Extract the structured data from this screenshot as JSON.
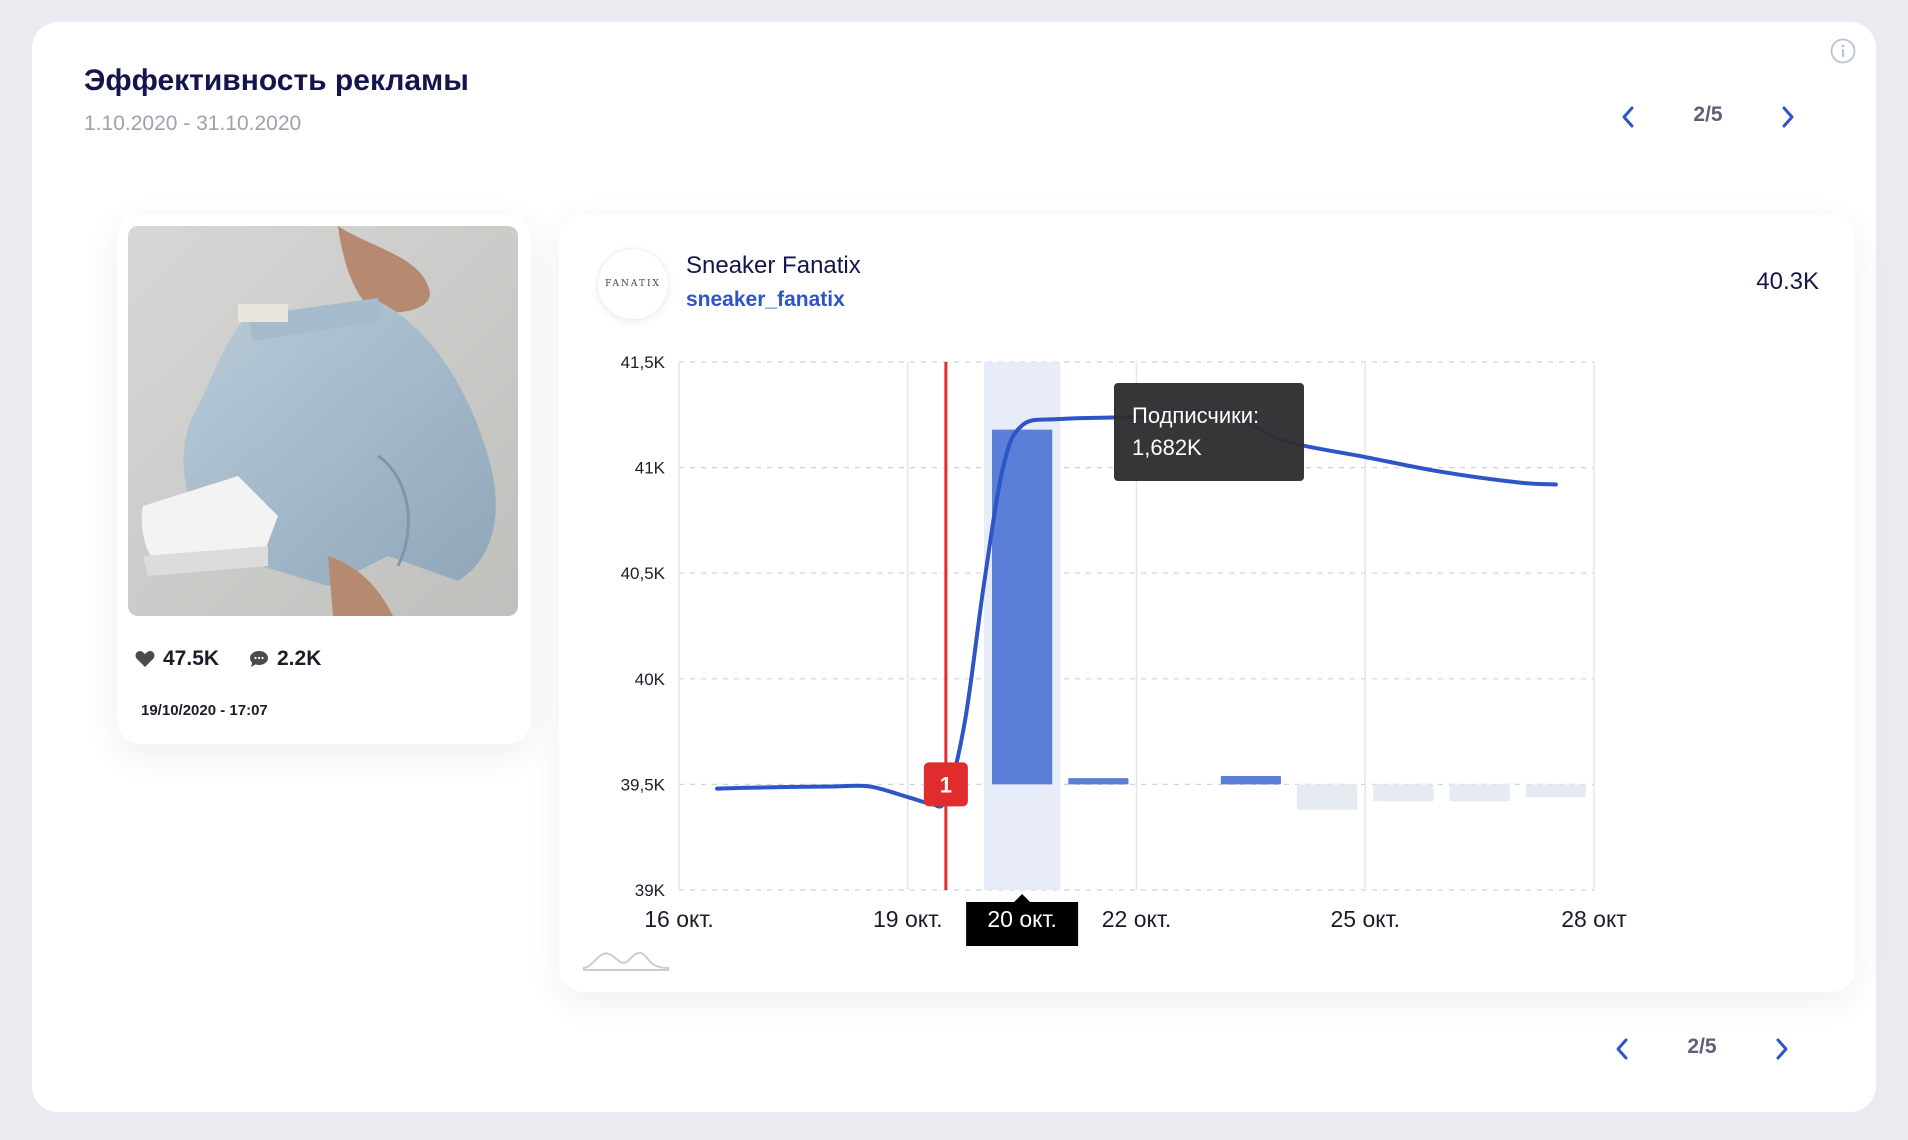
{
  "header": {
    "title": "Эффективность рекламы",
    "date_range": "1.10.2020 - 31.10.2020"
  },
  "pager_top": {
    "text": "2/5"
  },
  "pager_bottom": {
    "text": "2/5"
  },
  "post": {
    "likes": "47.5K",
    "comments": "2.2K",
    "date": "19/10/2020 - 17:07"
  },
  "account": {
    "logo_text": "FANATIX",
    "name": "Sneaker Fanatix",
    "handle": "sneaker_fanatix",
    "followers": "40.3K"
  },
  "colors": {
    "accent": "#2d55c8",
    "bar_positive": "#5b7fd6",
    "bar_negative": "#e6ebf2",
    "highlight_band": "#e8ecf9",
    "marker": "#e02c2c",
    "title": "#14154a"
  },
  "chart_data": {
    "type": "line",
    "y_ticks": [
      "41,5K",
      "41K",
      "40,5K",
      "40K",
      "39,5K",
      "39K"
    ],
    "y_tick_values": [
      41500,
      41000,
      40500,
      40000,
      39500,
      39000
    ],
    "ylim": [
      39000,
      41500
    ],
    "x_ticks": [
      {
        "label": "16 окт.",
        "day": 16
      },
      {
        "label": "19 окт.",
        "day": 19
      },
      {
        "label": "20 окт.",
        "day": 20.5,
        "highlighted": true
      },
      {
        "label": "22 окт.",
        "day": 22
      },
      {
        "label": "25 окт.",
        "day": 25
      },
      {
        "label": "28 окт",
        "day": 28
      }
    ],
    "xlim": [
      16,
      28
    ],
    "highlight_day": [
      20,
      21
    ],
    "line_series": {
      "name": "Подписчики",
      "points": [
        [
          16.5,
          39480
        ],
        [
          17.0,
          39485
        ],
        [
          17.5,
          39488
        ],
        [
          18.0,
          39490
        ],
        [
          18.5,
          39490
        ],
        [
          19.0,
          39440
        ],
        [
          19.3,
          39410
        ],
        [
          19.5,
          39430
        ],
        [
          19.75,
          39800
        ],
        [
          20.0,
          40450
        ],
        [
          20.25,
          41000
        ],
        [
          20.5,
          41200
        ],
        [
          21.0,
          41230
        ],
        [
          22.0,
          41240
        ],
        [
          23.0,
          41260
        ],
        [
          23.5,
          41200
        ],
        [
          24.0,
          41120
        ],
        [
          25.0,
          41050
        ],
        [
          26.0,
          40980
        ],
        [
          27.0,
          40930
        ],
        [
          27.5,
          40920
        ]
      ]
    },
    "bars": [
      {
        "day": 20.5,
        "value": 41180
      },
      {
        "day": 21.5,
        "value": 39530
      },
      {
        "day": 23.5,
        "value": 39540
      },
      {
        "day": 24.5,
        "value": 39380
      },
      {
        "day": 25.5,
        "value": 39420
      },
      {
        "day": 26.5,
        "value": 39420
      },
      {
        "day": 27.5,
        "value": 39440
      }
    ],
    "bar_baseline": 39500,
    "marker": {
      "day": 19.5,
      "label": "1"
    },
    "tooltip": {
      "title": "Подписчики:",
      "value": "1,682K"
    }
  }
}
